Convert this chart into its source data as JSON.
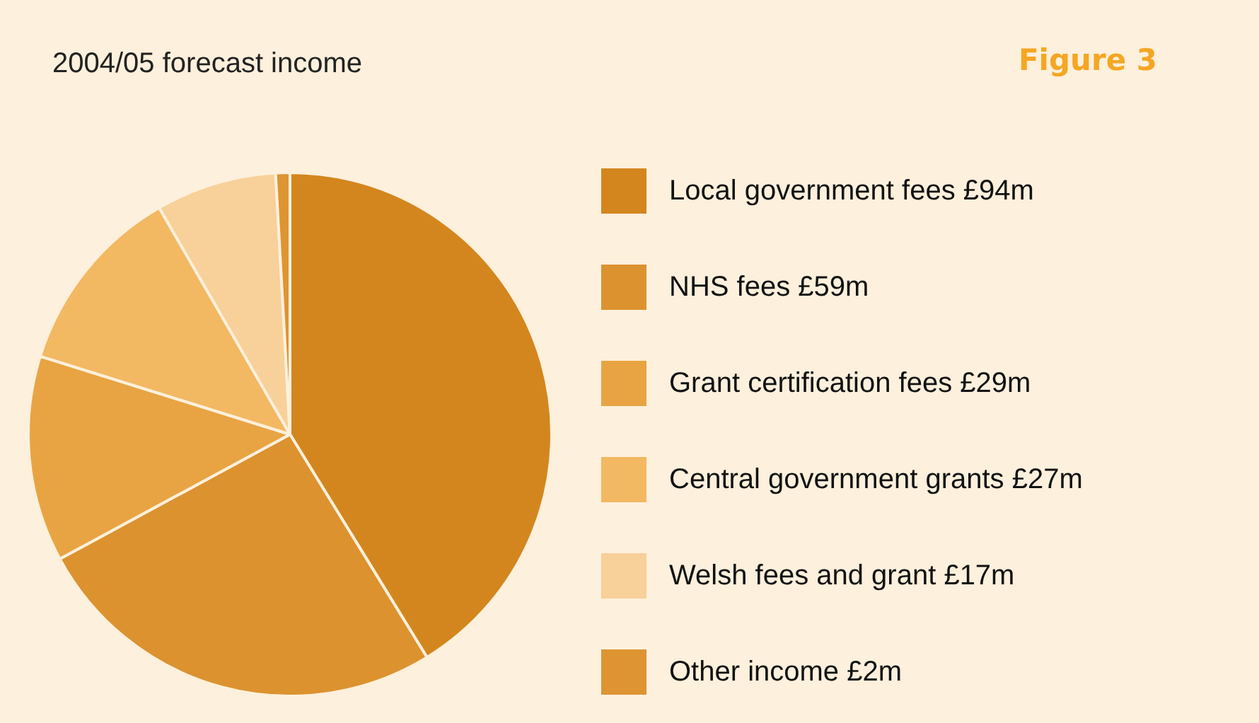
{
  "chart_data": {
    "type": "pie",
    "title": "2004/05 forecast income",
    "annotations": [
      "Figure 3"
    ],
    "categories": [
      "Local government fees",
      "NHS fees",
      "Grant certification fees",
      "Central government grants",
      "Welsh fees and grant",
      "Other income"
    ],
    "values": [
      94,
      59,
      29,
      27,
      17,
      2
    ],
    "value_labels": [
      "£94m",
      "£59m",
      "£29m",
      "£27m",
      "£17m",
      "£2m"
    ],
    "colors": [
      "#d4861e",
      "#dc922f",
      "#e8a443",
      "#f3b862",
      "#f8d09a",
      "#de9432"
    ],
    "legend": "right"
  }
}
